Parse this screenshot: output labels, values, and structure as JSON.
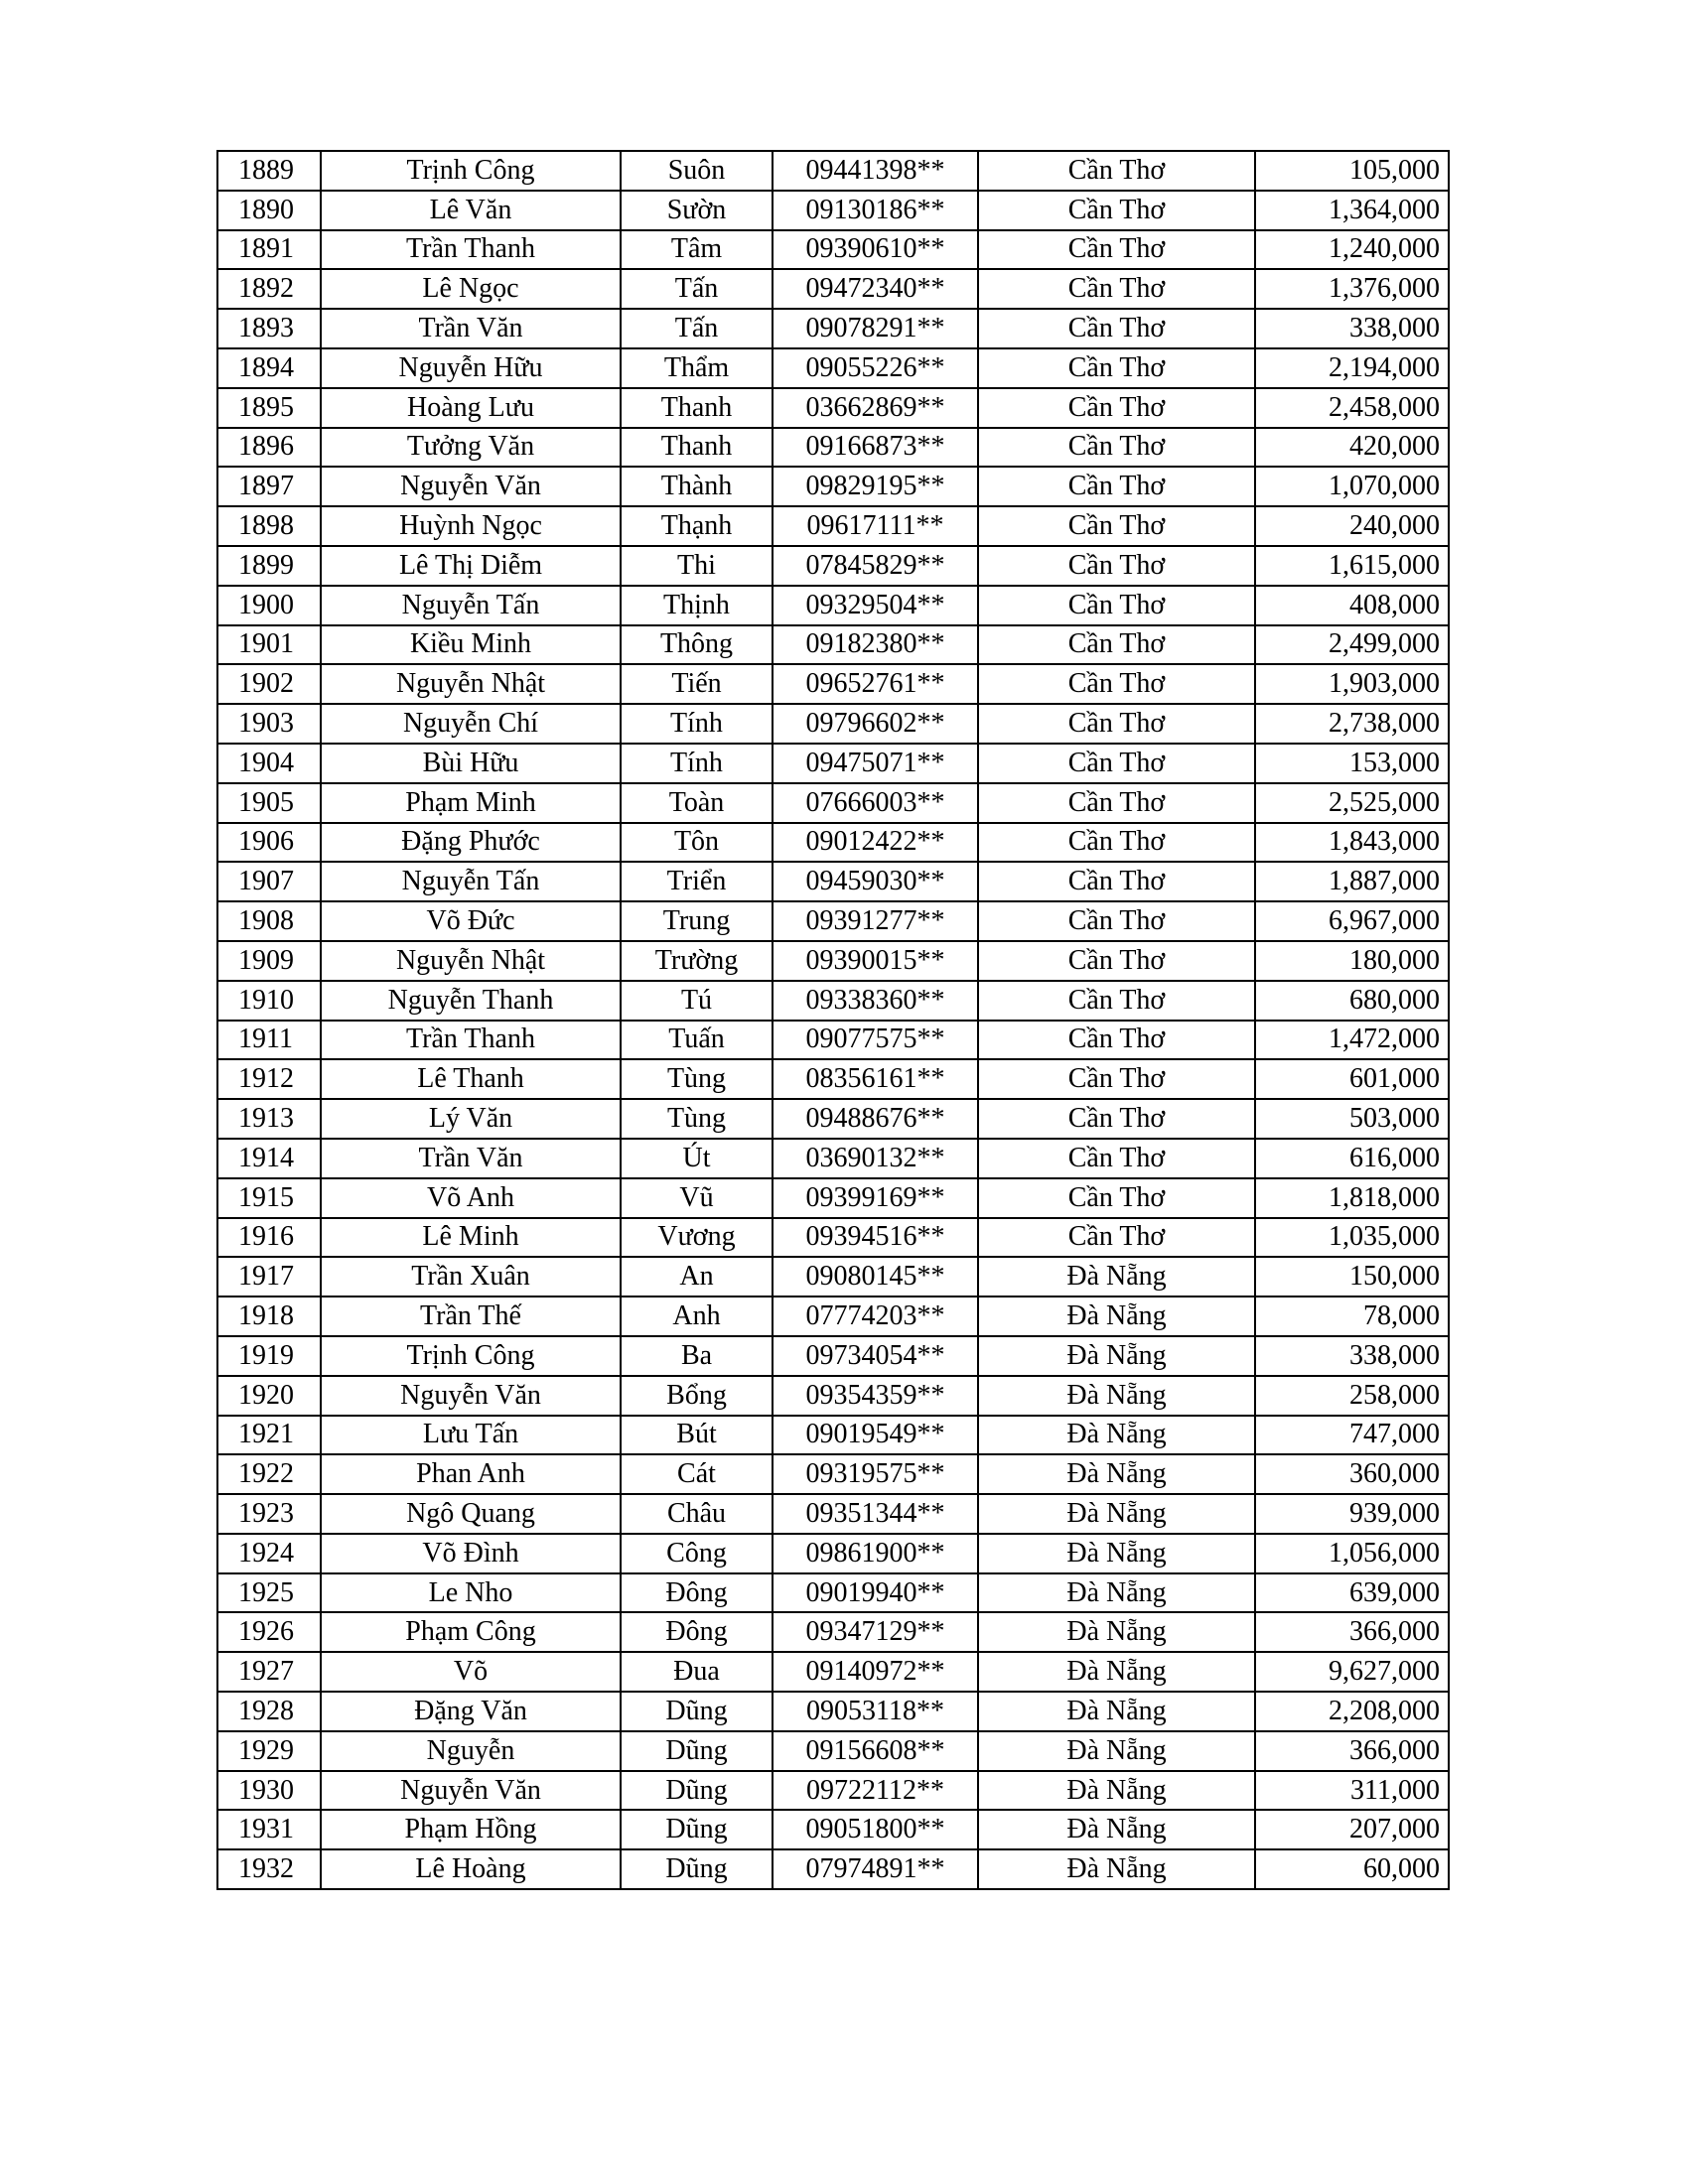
{
  "table": {
    "rows": [
      [
        "1889",
        "Trịnh Công",
        "Suôn",
        "09441398**",
        "Cần Thơ",
        "105,000"
      ],
      [
        "1890",
        "Lê Văn",
        "Sườn",
        "09130186**",
        "Cần Thơ",
        "1,364,000"
      ],
      [
        "1891",
        "Trần Thanh",
        "Tâm",
        "09390610**",
        "Cần Thơ",
        "1,240,000"
      ],
      [
        "1892",
        "Lê Ngọc",
        "Tấn",
        "09472340**",
        "Cần Thơ",
        "1,376,000"
      ],
      [
        "1893",
        "Trần Văn",
        "Tấn",
        "09078291**",
        "Cần Thơ",
        "338,000"
      ],
      [
        "1894",
        "Nguyễn Hữu",
        "Thẩm",
        "09055226**",
        "Cần Thơ",
        "2,194,000"
      ],
      [
        "1895",
        "Hoàng Lưu",
        "Thanh",
        "03662869**",
        "Cần Thơ",
        "2,458,000"
      ],
      [
        "1896",
        "Tưởng Văn",
        "Thanh",
        "09166873**",
        "Cần Thơ",
        "420,000"
      ],
      [
        "1897",
        "Nguyễn Văn",
        "Thành",
        "09829195**",
        "Cần Thơ",
        "1,070,000"
      ],
      [
        "1898",
        "Huỳnh Ngọc",
        "Thạnh",
        "09617111**",
        "Cần Thơ",
        "240,000"
      ],
      [
        "1899",
        "Lê Thị Diễm",
        "Thi",
        "07845829**",
        "Cần Thơ",
        "1,615,000"
      ],
      [
        "1900",
        "Nguyễn Tấn",
        "Thịnh",
        "09329504**",
        "Cần Thơ",
        "408,000"
      ],
      [
        "1901",
        "Kiều Minh",
        "Thông",
        "09182380**",
        "Cần Thơ",
        "2,499,000"
      ],
      [
        "1902",
        "Nguyễn Nhật",
        "Tiến",
        "09652761**",
        "Cần Thơ",
        "1,903,000"
      ],
      [
        "1903",
        "Nguyễn Chí",
        "Tính",
        "09796602**",
        "Cần Thơ",
        "2,738,000"
      ],
      [
        "1904",
        "Bùi Hữu",
        "Tính",
        "09475071**",
        "Cần Thơ",
        "153,000"
      ],
      [
        "1905",
        "Phạm Minh",
        "Toàn",
        "07666003**",
        "Cần Thơ",
        "2,525,000"
      ],
      [
        "1906",
        "Đặng Phước",
        "Tôn",
        "09012422**",
        "Cần Thơ",
        "1,843,000"
      ],
      [
        "1907",
        "Nguyễn Tấn",
        "Triển",
        "09459030**",
        "Cần Thơ",
        "1,887,000"
      ],
      [
        "1908",
        "Võ Đức",
        "Trung",
        "09391277**",
        "Cần Thơ",
        "6,967,000"
      ],
      [
        "1909",
        "Nguyễn Nhật",
        "Trường",
        "09390015**",
        "Cần Thơ",
        "180,000"
      ],
      [
        "1910",
        "Nguyễn Thanh",
        "Tú",
        "09338360**",
        "Cần Thơ",
        "680,000"
      ],
      [
        "1911",
        "Trần Thanh",
        "Tuấn",
        "09077575**",
        "Cần Thơ",
        "1,472,000"
      ],
      [
        "1912",
        "Lê Thanh",
        "Tùng",
        "08356161**",
        "Cần Thơ",
        "601,000"
      ],
      [
        "1913",
        "Lý Văn",
        "Tùng",
        "09488676**",
        "Cần Thơ",
        "503,000"
      ],
      [
        "1914",
        "Trần Văn",
        "Út",
        "03690132**",
        "Cần Thơ",
        "616,000"
      ],
      [
        "1915",
        "Võ Anh",
        "Vũ",
        "09399169**",
        "Cần Thơ",
        "1,818,000"
      ],
      [
        "1916",
        "Lê Minh",
        "Vương",
        "09394516**",
        "Cần Thơ",
        "1,035,000"
      ],
      [
        "1917",
        "Trần Xuân",
        "An",
        "09080145**",
        "Đà Nẵng",
        "150,000"
      ],
      [
        "1918",
        "Trần Thế",
        "Anh",
        "07774203**",
        "Đà Nẵng",
        "78,000"
      ],
      [
        "1919",
        "Trịnh Công",
        "Ba",
        "09734054**",
        "Đà Nẵng",
        "338,000"
      ],
      [
        "1920",
        "Nguyễn Văn",
        "Bổng",
        "09354359**",
        "Đà Nẵng",
        "258,000"
      ],
      [
        "1921",
        "Lưu Tấn",
        "Bút",
        "09019549**",
        "Đà Nẵng",
        "747,000"
      ],
      [
        "1922",
        "Phan Anh",
        "Cát",
        "09319575**",
        "Đà Nẵng",
        "360,000"
      ],
      [
        "1923",
        "Ngô Quang",
        "Châu",
        "09351344**",
        "Đà Nẵng",
        "939,000"
      ],
      [
        "1924",
        "Võ  Đình",
        "Công",
        "09861900**",
        "Đà Nẵng",
        "1,056,000"
      ],
      [
        "1925",
        "Le Nho",
        "Đông",
        "09019940**",
        "Đà Nẵng",
        "639,000"
      ],
      [
        "1926",
        "Phạm Công",
        "Đông",
        "09347129**",
        "Đà Nẵng",
        "366,000"
      ],
      [
        "1927",
        "Võ",
        "Đua",
        "09140972**",
        "Đà Nẵng",
        "9,627,000"
      ],
      [
        "1928",
        "Đặng Văn",
        "Dũng",
        "09053118**",
        "Đà Nẵng",
        "2,208,000"
      ],
      [
        "1929",
        "Nguyễn",
        "Dũng",
        "09156608**",
        "Đà Nẵng",
        "366,000"
      ],
      [
        "1930",
        "Nguyễn Văn",
        "Dũng",
        "09722112**",
        "Đà Nẵng",
        "311,000"
      ],
      [
        "1931",
        "Phạm Hồng",
        "Dũng",
        "09051800**",
        "Đà Nẵng",
        "207,000"
      ],
      [
        "1932",
        "Lê Hoàng",
        "Dũng",
        "07974891**",
        "Đà Nẵng",
        "60,000"
      ]
    ]
  }
}
